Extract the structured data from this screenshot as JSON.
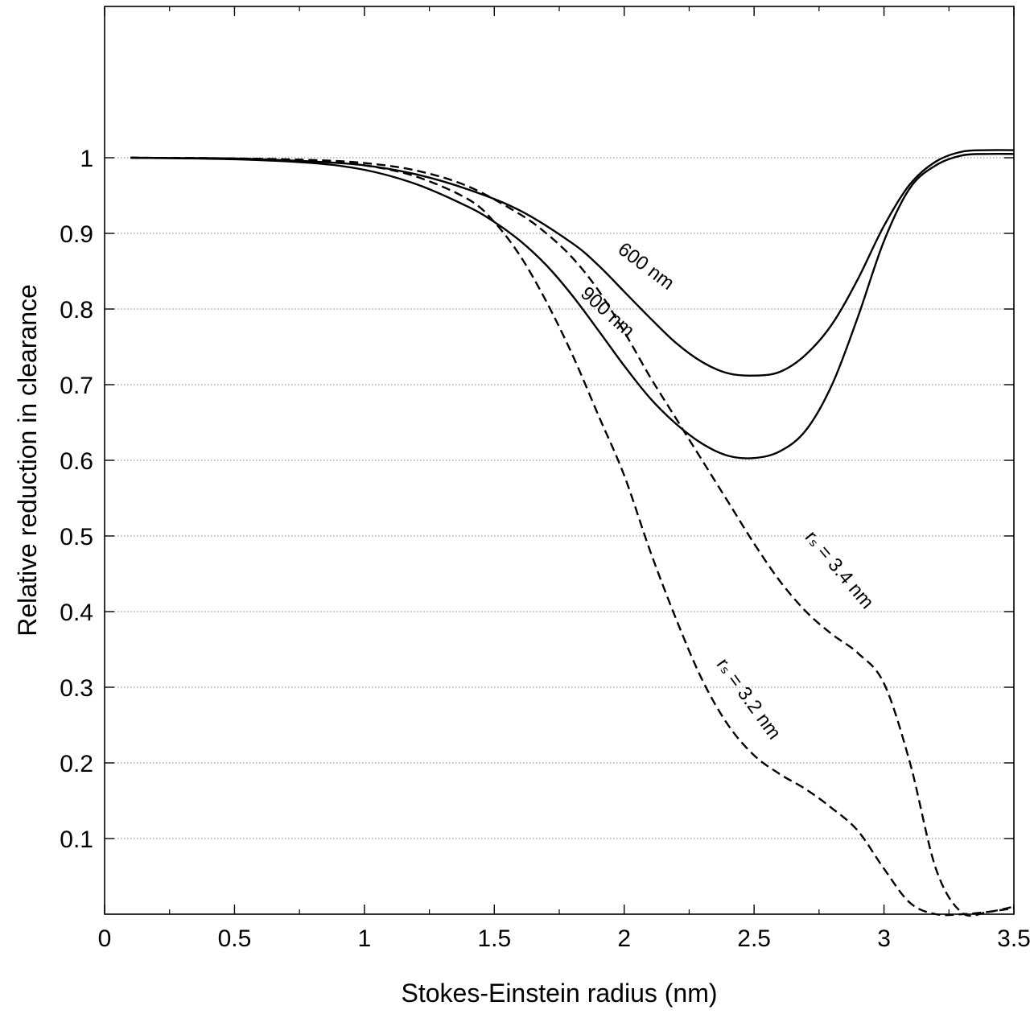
{
  "chart_data": {
    "type": "line",
    "title": "",
    "xlabel": "Stokes-Einstein radius (nm)",
    "ylabel": "Relative reduction in clearance",
    "xlim": [
      0,
      3.5
    ],
    "ylim": [
      0,
      1.2
    ],
    "xticks": [
      0,
      0.5,
      1,
      1.5,
      2,
      2.5,
      3,
      3.5
    ],
    "xtick_labels": [
      "0",
      "0.5",
      "1",
      "1.5",
      "2",
      "2.5",
      "3",
      "3.5"
    ],
    "x_minor_step": 0.25,
    "yticks": [
      0.1,
      0.2,
      0.3,
      0.4,
      0.5,
      0.6,
      0.7,
      0.8,
      0.9,
      1
    ],
    "ytick_labels": [
      "0.1",
      "0.2",
      "0.3",
      "0.4",
      "0.5",
      "0.6",
      "0.7",
      "0.8",
      "0.9",
      "1"
    ],
    "grid": "horizontal dotted",
    "legend": "none",
    "series": [
      {
        "name": "600 nm",
        "style": "solid",
        "color": "#000000",
        "x": [
          0.1,
          0.5,
          0.8,
          1.0,
          1.2,
          1.4,
          1.6,
          1.8,
          1.9,
          2.0,
          2.1,
          2.2,
          2.3,
          2.4,
          2.5,
          2.6,
          2.7,
          2.8,
          2.9,
          3.0,
          3.1,
          3.2,
          3.3,
          3.4,
          3.5
        ],
        "values": [
          1.0,
          0.999,
          0.995,
          0.99,
          0.978,
          0.958,
          0.93,
          0.887,
          0.858,
          0.823,
          0.788,
          0.755,
          0.73,
          0.715,
          0.712,
          0.717,
          0.74,
          0.78,
          0.84,
          0.91,
          0.965,
          0.995,
          1.008,
          1.01,
          1.01
        ]
      },
      {
        "name": "900 nm",
        "style": "solid",
        "color": "#000000",
        "x": [
          0.1,
          0.5,
          0.8,
          1.0,
          1.2,
          1.4,
          1.5,
          1.6,
          1.7,
          1.8,
          1.9,
          2.0,
          2.1,
          2.2,
          2.3,
          2.4,
          2.5,
          2.6,
          2.7,
          2.8,
          2.9,
          3.0,
          3.1,
          3.2,
          3.3,
          3.4,
          3.5
        ],
        "values": [
          1.0,
          0.998,
          0.993,
          0.984,
          0.965,
          0.935,
          0.915,
          0.89,
          0.858,
          0.818,
          0.772,
          0.725,
          0.682,
          0.648,
          0.622,
          0.606,
          0.603,
          0.612,
          0.64,
          0.7,
          0.79,
          0.89,
          0.96,
          0.99,
          1.003,
          1.005,
          1.005
        ]
      },
      {
        "name": "rₛ = 3.4 nm",
        "style": "dashed",
        "color": "#000000",
        "x": [
          0.1,
          0.5,
          0.8,
          1.0,
          1.2,
          1.4,
          1.6,
          1.7,
          1.8,
          1.9,
          2.0,
          2.1,
          2.2,
          2.3,
          2.4,
          2.5,
          2.6,
          2.7,
          2.8,
          2.9,
          3.0,
          3.1,
          3.2,
          3.3,
          3.4,
          3.5
        ],
        "values": [
          1.0,
          0.999,
          0.997,
          0.993,
          0.983,
          0.962,
          0.925,
          0.9,
          0.868,
          0.825,
          0.77,
          0.71,
          0.655,
          0.6,
          0.545,
          0.49,
          0.44,
          0.4,
          0.37,
          0.345,
          0.305,
          0.2,
          0.06,
          0.002,
          0.003,
          0.01
        ]
      },
      {
        "name": "rₛ = 3.2 nm",
        "style": "dashed",
        "color": "#000000",
        "x": [
          0.1,
          0.5,
          0.8,
          1.0,
          1.2,
          1.4,
          1.5,
          1.6,
          1.7,
          1.8,
          1.9,
          2.0,
          2.1,
          2.2,
          2.3,
          2.4,
          2.5,
          2.6,
          2.7,
          2.8,
          2.9,
          3.0,
          3.1,
          3.2,
          3.3,
          3.4,
          3.5
        ],
        "values": [
          1.0,
          0.999,
          0.996,
          0.99,
          0.975,
          0.945,
          0.915,
          0.87,
          0.81,
          0.74,
          0.66,
          0.58,
          0.48,
          0.39,
          0.31,
          0.25,
          0.21,
          0.185,
          0.165,
          0.14,
          0.11,
          0.06,
          0.015,
          0.0,
          0.0,
          0.003,
          0.008
        ]
      }
    ],
    "annotations": [
      {
        "text": "600 nm",
        "x": 2.07,
        "y": 0.85,
        "angle": 37
      },
      {
        "text": "900 nm",
        "x": 1.92,
        "y": 0.79,
        "angle": 42
      },
      {
        "text": "rₛ = 3.4 nm",
        "x": 2.81,
        "y": 0.45,
        "angle": 50
      },
      {
        "text": "rₛ = 3.2 nm",
        "x": 2.46,
        "y": 0.28,
        "angle": 54
      }
    ]
  }
}
